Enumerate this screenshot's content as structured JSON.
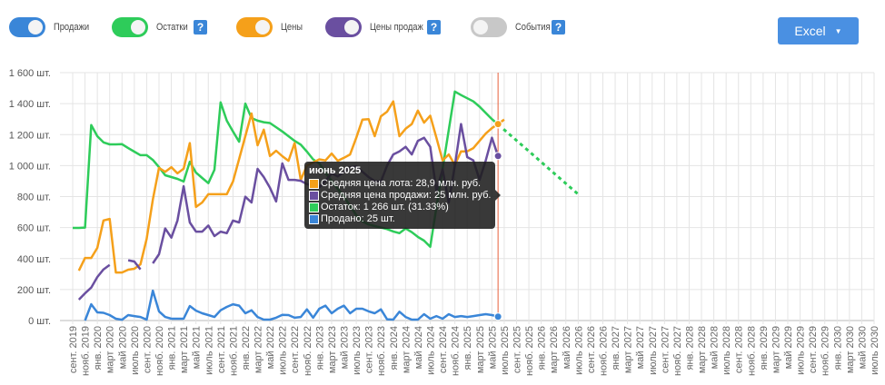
{
  "toolbar": {
    "toggles": [
      {
        "label": "Продажи",
        "color": "#3a86d8",
        "on": true,
        "help": false
      },
      {
        "label": "Остатки",
        "color": "#2ecc5a",
        "on": true,
        "help": true
      },
      {
        "label": "Цены",
        "color": "#f5a01a",
        "on": true,
        "help": false
      },
      {
        "label": "Цены продаж",
        "color": "#6a4fa0",
        "on": true,
        "help": true
      },
      {
        "label": "События",
        "color": "#c8c8c8",
        "on": false,
        "help": true
      }
    ],
    "help_label": "?",
    "excel_label": "Excel",
    "excel_caret": "▼"
  },
  "tooltip": {
    "title": "июнь 2025",
    "rows": [
      {
        "text": "Средняя цена лота: 28,9 млн. руб.",
        "color": "#f5a01a"
      },
      {
        "text": "Средняя цена продажи: 25 млн. руб.",
        "color": "#6a4fa0"
      },
      {
        "text": "Остаток: 1 266 шт. (31.33%)",
        "color": "#2ecc5a"
      },
      {
        "text": "Продано: 25 шт.",
        "color": "#3a86d8"
      }
    ]
  },
  "chart_data": {
    "type": "line",
    "x_start": "сент. 2019",
    "x_step": "month",
    "x_count": 131,
    "x_tick_labels": [
      "сент. 2019",
      "нояб. 2019",
      "янв. 2020",
      "март 2020",
      "май 2020",
      "июль 2020",
      "сент. 2020",
      "нояб. 2020",
      "янв. 2021",
      "март 2021",
      "май 2021",
      "июль 2021",
      "сент. 2021",
      "нояб. 2021",
      "янв. 2022",
      "март 2022",
      "май 2022",
      "июль 2022",
      "сент. 2022",
      "нояб. 2022",
      "янв. 2023",
      "март 2023",
      "май 2023",
      "июль 2023",
      "сент. 2023",
      "нояб. 2023",
      "янв. 2024",
      "март 2024",
      "май 2024",
      "июль 2024",
      "сент. 2024",
      "нояб. 2024",
      "янв. 2025",
      "март 2025",
      "май 2025",
      "июль 2025",
      "сент. 2025",
      "нояб. 2025",
      "янв. 2026",
      "март 2026",
      "май 2026",
      "июль 2026",
      "сент. 2026",
      "нояб. 2026",
      "янв. 2027",
      "март 2027",
      "май 2027",
      "июль 2027",
      "сент. 2027",
      "нояб. 2027",
      "янв. 2028",
      "март 2028",
      "май 2028",
      "июль 2028",
      "сент. 2028",
      "нояб. 2028",
      "янв. 2029",
      "март 2029",
      "май 2029",
      "июль 2029",
      "сент. 2029",
      "нояб. 2029",
      "янв. 2030",
      "март 2030",
      "май 2030",
      "июль 2030"
    ],
    "y_ticks": [
      0,
      200,
      400,
      600,
      800,
      1000,
      1200,
      1400,
      1600
    ],
    "y_tick_labels": [
      "0 шт.",
      "200 шт.",
      "400 шт.",
      "600 шт.",
      "800 шт.",
      "1 000 шт.",
      "1 200 шт.",
      "1 400 шт.",
      "1 600 шт."
    ],
    "ylim": [
      0,
      1600
    ],
    "grid": true,
    "cursor_month_index": 69,
    "cursor_color": "#e8603c",
    "series": [
      {
        "name": "Остатки",
        "color": "#2ecc5a",
        "values": [
          598,
          598,
          600,
          1262,
          1190,
          1150,
          1137,
          1137,
          1138,
          1113,
          1090,
          1067,
          1067,
          1037,
          990,
          938,
          926,
          914,
          897,
          1025,
          955,
          920,
          887,
          973,
          1408,
          1290,
          1220,
          1154,
          1400,
          1307,
          1290,
          1280,
          1275,
          1248,
          1220,
          1190,
          1160,
          1135,
          1090,
          1040,
          1014,
          955,
          900,
          850,
          800,
          740,
          680,
          640,
          620,
          610,
          600,
          590,
          575,
          564,
          594,
          570,
          540,
          516,
          476,
          730,
          980,
          1230,
          1478,
          1455,
          1435,
          1414,
          1380,
          1340,
          1300,
          1266
        ]
      },
      {
        "name": "Цены",
        "color": "#f5a01a",
        "values": [
          null,
          322,
          404,
          404,
          469,
          646,
          656,
          310,
          310,
          328,
          334,
          363,
          527,
          780,
          985,
          960,
          990,
          950,
          980,
          1145,
          733,
          762,
          815,
          815,
          815,
          815,
          897,
          1043,
          1190,
          1336,
          1131,
          1232,
          1062,
          1096,
          1061,
          1031,
          1145,
          908,
          1000,
          1020,
          1040,
          1033,
          1078,
          1031,
          1050,
          1072,
          1180,
          1297,
          1300,
          1190,
          1318,
          1348,
          1414,
          1190,
          1238,
          1268,
          1355,
          1277,
          1322,
          1180,
          1033,
          1072,
          1004,
          1092,
          1092,
          1113,
          1160,
          1207,
          1242,
          1268,
          1297
        ]
      },
      {
        "name": "Цены продаж",
        "color": "#6a4fa0",
        "values": [
          null,
          135,
          176,
          213,
          281,
          330,
          359,
          null,
          null,
          389,
          381,
          330,
          null,
          369,
          428,
          594,
          535,
          645,
          867,
          633,
          574,
          574,
          613,
          545,
          574,
          564,
          645,
          633,
          799,
          762,
          979,
          926,
          857,
          769,
          1014,
          908,
          908,
          902,
          880,
          870,
          860,
          900,
          950,
          930,
          960,
          990,
          996,
          960,
          926,
          900,
          897,
          1000,
          1072,
          1092,
          1121,
          1072,
          1160,
          1180,
          1121,
          838,
          975,
          762,
          1000,
          1268,
          1055,
          1033,
          908,
          1033,
          1180,
          1062
        ]
      },
      {
        "name": "Продажи",
        "color": "#3a86d8",
        "values": [
          null,
          null,
          0,
          105,
          53,
          50,
          35,
          12,
          5,
          35,
          29,
          23,
          6,
          193,
          59,
          23,
          12,
          12,
          12,
          94,
          64,
          47,
          35,
          23,
          66,
          88,
          105,
          96,
          47,
          66,
          23,
          6,
          6,
          18,
          37,
          35,
          18,
          23,
          72,
          18,
          76,
          96,
          47,
          76,
          96,
          47,
          76,
          76,
          59,
          47,
          72,
          8,
          6,
          57,
          23,
          6,
          6,
          41,
          12,
          29,
          12,
          41,
          23,
          29,
          23,
          29,
          35,
          41,
          35,
          25
        ]
      }
    ],
    "forecast": {
      "name": "Остатки прогноз",
      "color": "#2ecc5a",
      "start_index": 69,
      "end_index": 82,
      "values": [
        1266,
        815
      ]
    }
  }
}
